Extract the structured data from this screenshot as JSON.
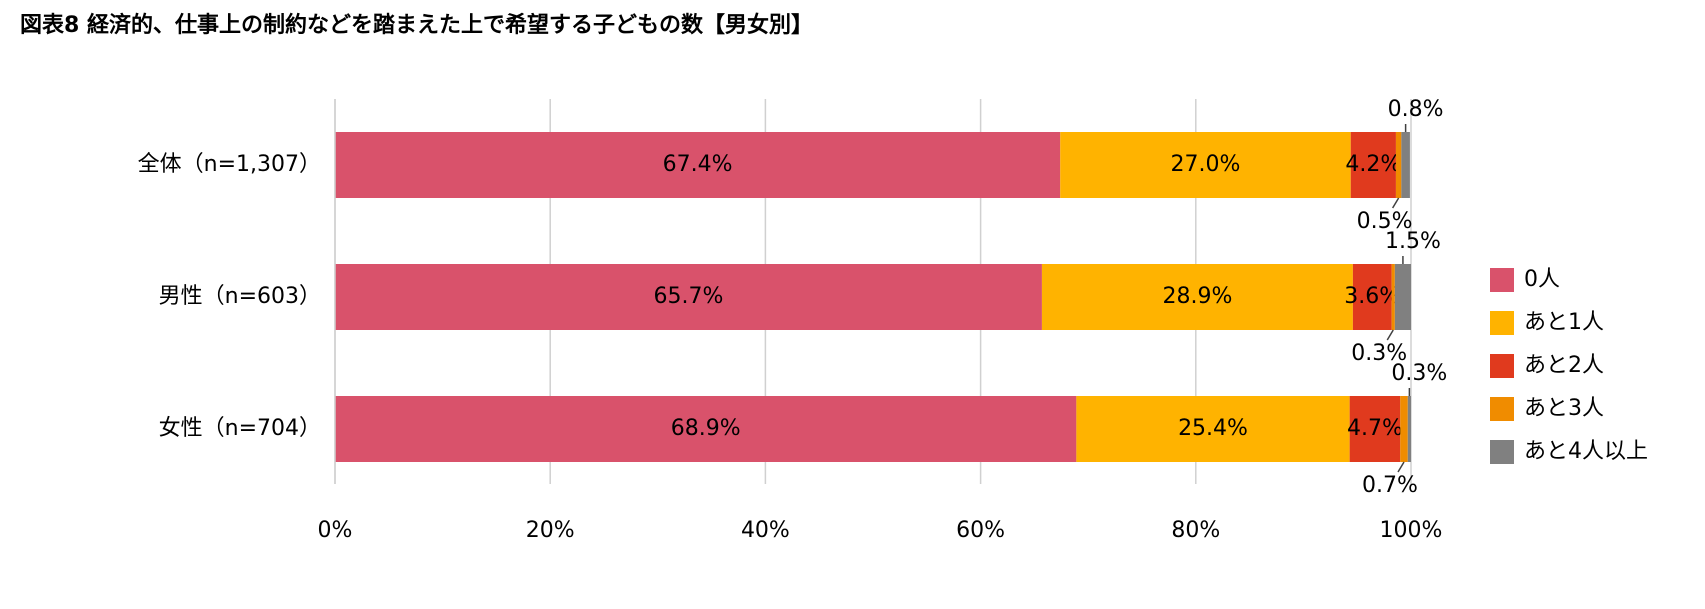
{
  "chart_data": {
    "type": "stacked-bar-horizontal",
    "title": "図表8 経済的、仕事上の制約などを踏まえた上で希望する子どもの数【男女別】",
    "categories": [
      "全体（n=1,307）",
      "男性（n=603）",
      "女性（n=704）"
    ],
    "series": [
      {
        "name": "0人",
        "color": "#d9526b",
        "values": [
          67.4,
          65.7,
          68.9
        ],
        "value_labels": [
          "67.4%",
          "65.7%",
          "68.9%"
        ]
      },
      {
        "name": "あと1人",
        "color": "#ffb300",
        "values": [
          27.0,
          28.9,
          25.4
        ],
        "value_labels": [
          "27.0%",
          "28.9%",
          "25.4%"
        ]
      },
      {
        "name": "あと2人",
        "color": "#e03a1e",
        "values": [
          4.2,
          3.6,
          4.7
        ],
        "value_labels": [
          "4.2%",
          "3.6%",
          "4.7%"
        ]
      },
      {
        "name": "あと3人",
        "color": "#f08c00",
        "values": [
          0.5,
          0.3,
          0.7
        ],
        "value_labels": [
          "0.5%",
          "0.3%",
          "0.7%"
        ]
      },
      {
        "name": "あと4人以上",
        "color": "#808080",
        "values": [
          0.8,
          1.5,
          0.3
        ],
        "value_labels": [
          "0.8%",
          "1.5%",
          "0.3%"
        ]
      }
    ],
    "xlim": [
      0,
      100
    ],
    "xticks": [
      {
        "value": 0,
        "label": "0%"
      },
      {
        "value": 20,
        "label": "20%"
      },
      {
        "value": 40,
        "label": "40%"
      },
      {
        "value": 60,
        "label": "60%"
      },
      {
        "value": 80,
        "label": "80%"
      },
      {
        "value": 100,
        "label": "100%"
      }
    ],
    "grid": true,
    "legend": "right"
  }
}
